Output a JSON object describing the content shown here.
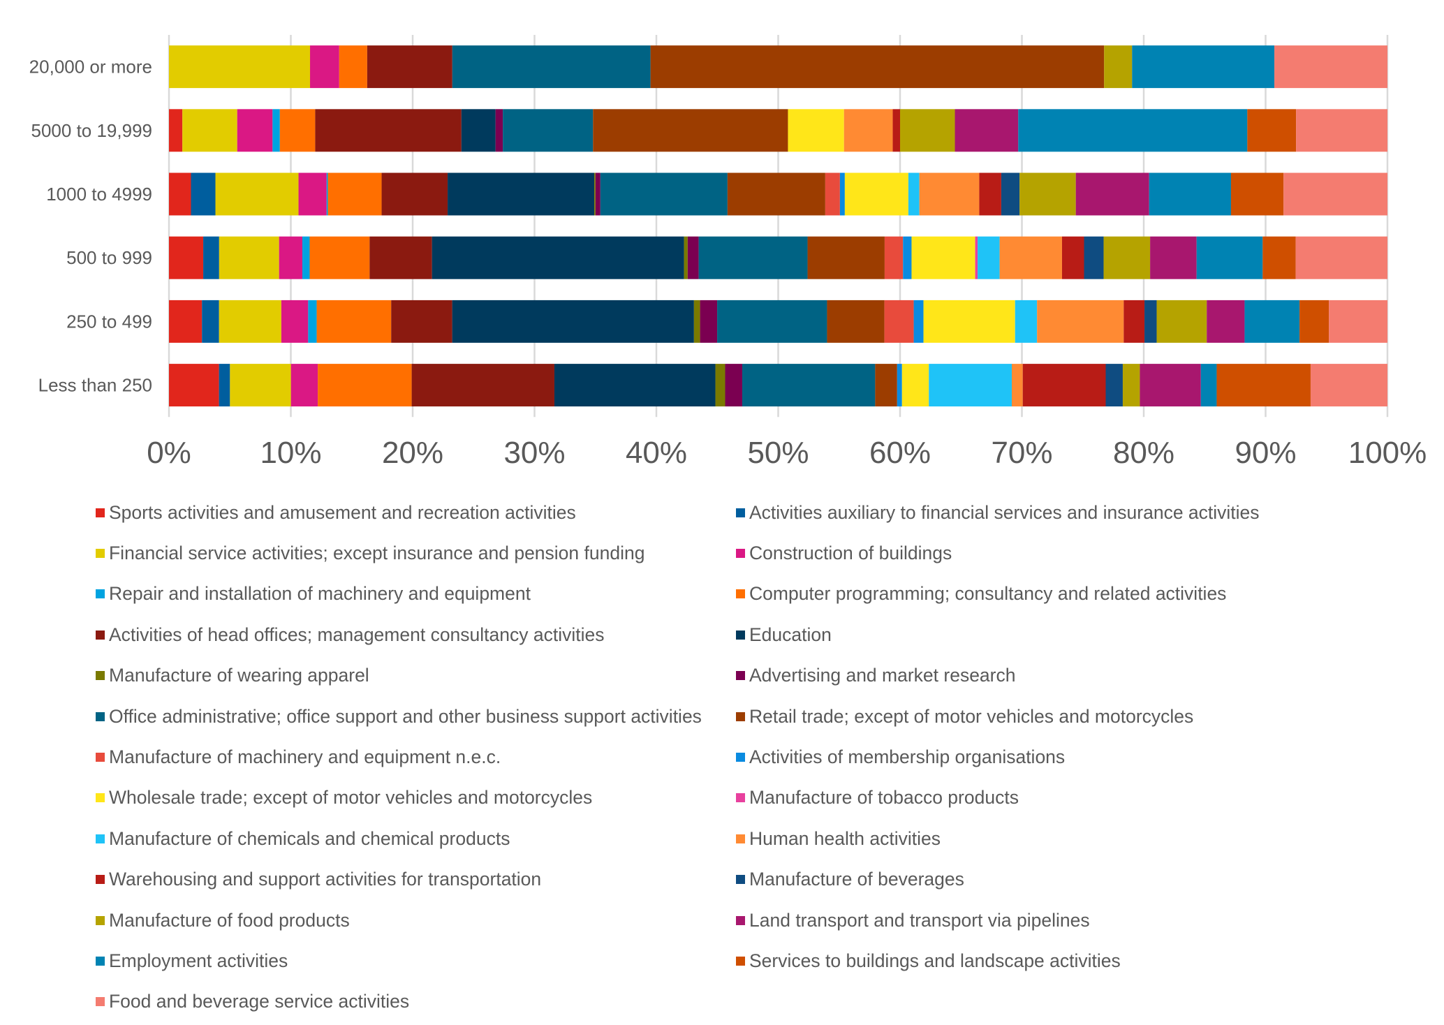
{
  "chart_data": {
    "type": "bar",
    "orientation": "horizontal",
    "stacked": "percent",
    "categories": [
      "20,000 or more",
      "5000 to 19,999",
      "1000 to 4999",
      "500 to 999",
      "250 to 499",
      "Less than 250"
    ],
    "xlim": [
      0,
      100
    ],
    "xticks": [
      "0%",
      "10%",
      "20%",
      "30%",
      "40%",
      "50%",
      "60%",
      "70%",
      "80%",
      "90%",
      "100%"
    ],
    "grid": true,
    "legend_position": "bottom",
    "series": [
      {
        "name": "Sports activities and amusement and recreation activities",
        "color": "#E1261C",
        "values": [
          0,
          1.1,
          1.8,
          2.8,
          2.7,
          4.1
        ]
      },
      {
        "name": "Activities auxiliary to financial services and insurance activities",
        "color": "#005E9E",
        "values": [
          0,
          0,
          2.0,
          1.3,
          1.4,
          0.9
        ]
      },
      {
        "name": "Financial service activities; except insurance and pension funding",
        "color": "#E2CC00",
        "values": [
          11.6,
          4.5,
          6.8,
          4.9,
          5.1,
          5.0
        ]
      },
      {
        "name": "Construction of buildings",
        "color": "#DA1884",
        "values": [
          2.4,
          2.9,
          2.3,
          1.9,
          2.2,
          2.2
        ]
      },
      {
        "name": "Repair and installation of machinery and equipment",
        "color": "#00A3E0",
        "values": [
          0,
          0.6,
          0.1,
          0.6,
          0.7,
          0
        ]
      },
      {
        "name": "Computer programming; consultancy and related activities",
        "color": "#FF6F00",
        "values": [
          2.3,
          2.9,
          4.4,
          4.9,
          6.1,
          7.7
        ]
      },
      {
        "name": "Activities of head offices; management consultancy activities",
        "color": "#8B1A10",
        "values": [
          7.0,
          12.0,
          5.4,
          5.1,
          5.0,
          11.7
        ]
      },
      {
        "name": "Education",
        "color": "#003A5D",
        "values": [
          0,
          2.8,
          12.0,
          20.6,
          19.8,
          13.2
        ]
      },
      {
        "name": "Manufacture of wearing apparel",
        "color": "#7A7A00",
        "values": [
          0,
          0,
          0.1,
          0.3,
          0.5,
          0.8
        ]
      },
      {
        "name": "Advertising and market research",
        "color": "#7B0051",
        "values": [
          0,
          0.6,
          0.4,
          0.9,
          1.4,
          1.4
        ]
      },
      {
        "name": "Office administrative; office support and other business support activities",
        "color": "#006384",
        "values": [
          16.3,
          7.4,
          10.4,
          8.9,
          9.0,
          10.9
        ]
      },
      {
        "name": "Retail trade; except of motor vehicles and motorcycles",
        "color": "#9C3D00",
        "values": [
          37.3,
          16.0,
          8.0,
          6.3,
          4.7,
          1.8
        ]
      },
      {
        "name": "Manufacture of machinery and equipment n.e.c.",
        "color": "#E84B3C",
        "values": [
          0,
          0,
          1.2,
          1.5,
          2.4,
          0
        ]
      },
      {
        "name": "Activities of membership organisations",
        "color": "#0A8BE0",
        "values": [
          0,
          0,
          0.4,
          0.7,
          0.8,
          0.4
        ]
      },
      {
        "name": "Wholesale trade; except of motor vehicles and motorcycles",
        "color": "#FFE619",
        "values": [
          0,
          4.6,
          5.2,
          5.2,
          7.5,
          2.2
        ]
      },
      {
        "name": "Manufacture of tobacco products",
        "color": "#E8419E",
        "values": [
          0,
          0,
          0,
          0.2,
          0,
          0
        ]
      },
      {
        "name": "Manufacture of chemicals and chemical products",
        "color": "#1FC3F7",
        "values": [
          0,
          0,
          0.9,
          1.8,
          1.8,
          6.8
        ]
      },
      {
        "name": "Human health activities",
        "color": "#FF8A33",
        "values": [
          0,
          4.0,
          4.9,
          5.1,
          7.1,
          0.9
        ]
      },
      {
        "name": "Warehousing and support activities for transportation",
        "color": "#B81C16",
        "values": [
          0,
          0.6,
          1.8,
          1.8,
          1.7,
          6.8
        ]
      },
      {
        "name": "Manufacture of beverages",
        "color": "#0F4C81",
        "values": [
          0,
          0,
          1.5,
          1.6,
          1.0,
          1.4
        ]
      },
      {
        "name": "Manufacture of food products",
        "color": "#B5A300",
        "values": [
          2.3,
          4.5,
          4.6,
          3.8,
          4.1,
          1.4
        ]
      },
      {
        "name": "Land transport and transport via pipelines",
        "color": "#A8176E",
        "values": [
          0,
          5.2,
          6.0,
          3.8,
          3.1,
          5.0
        ]
      },
      {
        "name": "Employment activities",
        "color": "#0083B3",
        "values": [
          11.7,
          18.8,
          6.7,
          5.4,
          4.5,
          1.3
        ]
      },
      {
        "name": "Services to buildings and landscape activities",
        "color": "#CF4F00",
        "values": [
          0,
          4.0,
          4.3,
          2.7,
          2.4,
          7.7
        ]
      },
      {
        "name": "Food and beverage service activities",
        "color": "#F47C70",
        "values": [
          9.3,
          7.5,
          8.5,
          7.5,
          4.8,
          6.3
        ]
      }
    ]
  }
}
